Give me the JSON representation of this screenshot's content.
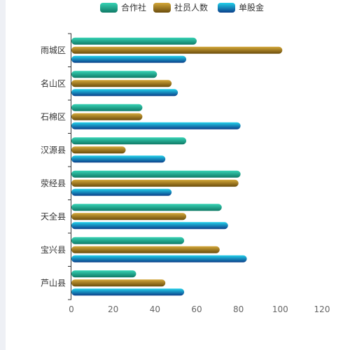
{
  "chart_data": {
    "type": "bar",
    "orientation": "horizontal",
    "categories": [
      "雨城区",
      "名山区",
      "石棉区",
      "汉源县",
      "荥经县",
      "天全县",
      "宝兴县",
      "芦山县"
    ],
    "series": [
      {
        "name": "合作社",
        "values": [
          60,
          41,
          34,
          55,
          81,
          72,
          54,
          31
        ],
        "color": "#1a9e86",
        "gradient": [
          "#37d3b5",
          "#0f7a66"
        ]
      },
      {
        "name": "社员人数",
        "values": [
          101,
          48,
          34,
          26,
          80,
          55,
          71,
          45
        ],
        "color": "#a57a1c",
        "gradient": [
          "#d4a83a",
          "#6b4d0c"
        ]
      },
      {
        "name": "单股金",
        "values": [
          55,
          51,
          81,
          45,
          48,
          75,
          84,
          54
        ],
        "color": "#1e7fc9",
        "gradient": [
          "#22d0ea",
          "#0b3f8a"
        ]
      }
    ],
    "x_ticks": [
      "0",
      "20",
      "40",
      "60",
      "80",
      "100",
      "120"
    ],
    "xlim": [
      0,
      120
    ],
    "legend_position": "top-center",
    "grid": false
  },
  "icons": {
    "legend_marker": "rounded-rect-swatch"
  }
}
